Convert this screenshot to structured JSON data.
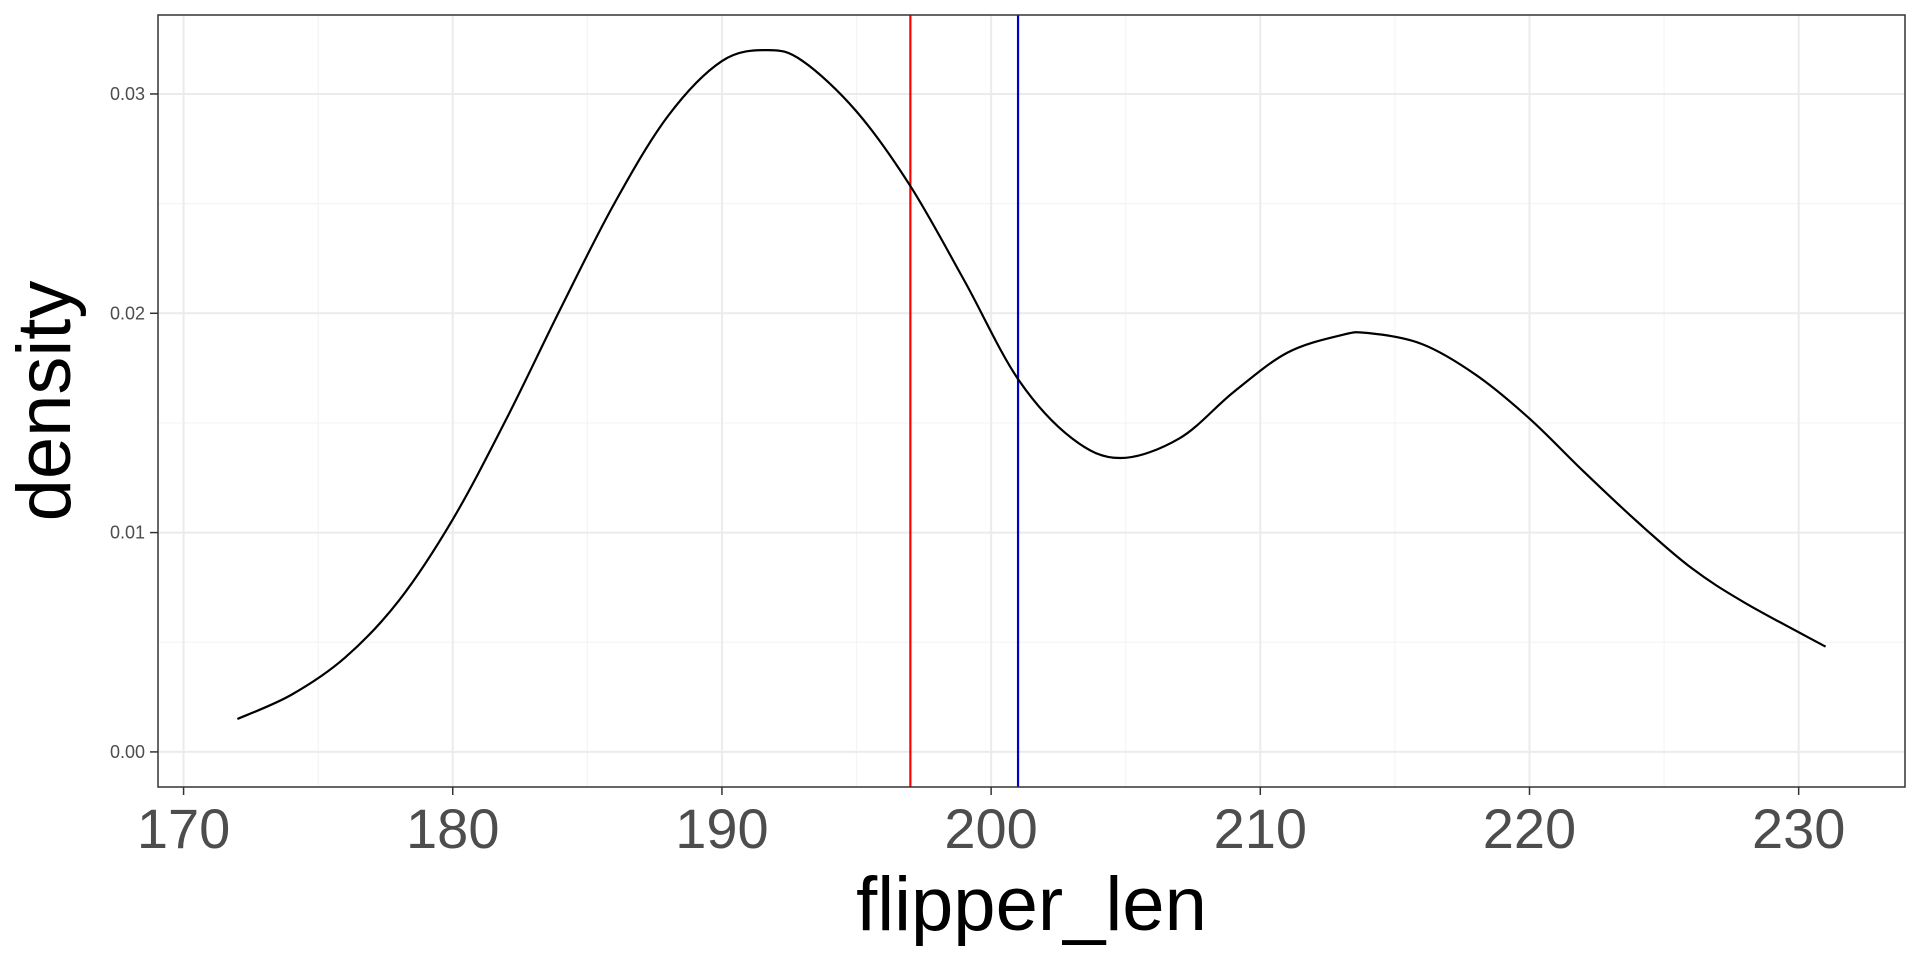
{
  "chart_data": {
    "type": "line",
    "title": "",
    "xlabel": "flipper_len",
    "ylabel": "density",
    "xlim": [
      169.05,
      233.95
    ],
    "ylim": [
      -0.0016,
      0.0336
    ],
    "x_ticks": [
      170,
      180,
      190,
      200,
      210,
      220,
      230
    ],
    "x_tick_labels": [
      "170",
      "180",
      "190",
      "200",
      "210",
      "220",
      "230"
    ],
    "x_minor_ticks": [
      175,
      185,
      195,
      205,
      215,
      225
    ],
    "y_ticks": [
      0.0,
      0.01,
      0.02,
      0.03
    ],
    "y_tick_labels": [
      "0.00",
      "0.01",
      "0.02",
      "0.03"
    ],
    "y_minor_ticks": [
      0.005,
      0.015,
      0.025
    ],
    "grid": true,
    "legend": "none",
    "series": [
      {
        "color": "#000000",
        "x": [
          172,
          174,
          176,
          178,
          180,
          182,
          184,
          186,
          188,
          190,
          191.7,
          193,
          195,
          197,
          199,
          201,
          203,
          204.8,
          207,
          209,
          211,
          213,
          214,
          216,
          218,
          220,
          222,
          224,
          226,
          228,
          231
        ],
        "y": [
          0.0015,
          0.0026,
          0.0043,
          0.0069,
          0.0106,
          0.0152,
          0.0202,
          0.025,
          0.029,
          0.0315,
          0.032,
          0.0315,
          0.0292,
          0.0258,
          0.0215,
          0.017,
          0.0143,
          0.0134,
          0.0143,
          0.0164,
          0.0182,
          0.019,
          0.0191,
          0.0186,
          0.0172,
          0.0152,
          0.0128,
          0.0105,
          0.0084,
          0.0068,
          0.0048
        ]
      }
    ],
    "vlines": [
      {
        "x": 197.0,
        "color": "#ff0000"
      },
      {
        "x": 201.0,
        "color": "#0000cc"
      }
    ],
    "colors": {
      "panel_border": "#333333",
      "grid_major": "#ebebeb",
      "grid_minor": "#f4f4f4",
      "curve": "#000000"
    }
  }
}
